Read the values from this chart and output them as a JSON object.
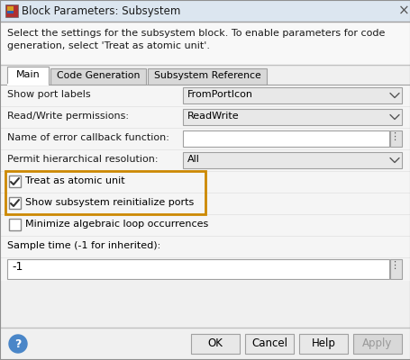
{
  "title": "Block Parameters: Subsystem",
  "desc_line1": "Select the settings for the subsystem block. To enable parameters for code",
  "desc_line2": "generation, select 'Treat as atomic unit'.",
  "tabs": [
    "Main",
    "Code Generation",
    "Subsystem Reference"
  ],
  "fields": [
    {
      "label": "Show port labels",
      "type": "dropdown",
      "value": "FromPortIcon"
    },
    {
      "label": "Read/Write permissions:",
      "type": "dropdown",
      "value": "ReadWrite"
    },
    {
      "label": "Name of error callback function:",
      "type": "text",
      "value": ""
    },
    {
      "label": "Permit hierarchical resolution:",
      "type": "dropdown",
      "value": "All"
    }
  ],
  "checkboxes": [
    {
      "label": "Treat as atomic unit",
      "checked": true,
      "highlighted": true
    },
    {
      "label": "Show subsystem reinitialize ports",
      "checked": true,
      "highlighted": true
    },
    {
      "label": "Minimize algebraic loop occurrences",
      "checked": false,
      "highlighted": false
    }
  ],
  "sample_time_label": "Sample time (-1 for inherited):",
  "sample_time_value": "-1",
  "buttons": [
    "OK",
    "Cancel",
    "Help",
    "Apply"
  ],
  "highlight_color": "#cc8800",
  "bg": "#f0f0f0",
  "titlebar_bg": "#dce6f0",
  "content_bg": "#f5f5f5",
  "dropdown_bg": "#e8e8e8",
  "input_bg": "#ffffff",
  "sep_color": "#c0c0c0",
  "border_color": "#a0a0a0",
  "tab_active_bg": "#ffffff",
  "tab_inactive_bg": "#d8d8d8",
  "button_bg": "#e8e8e8",
  "apply_bg": "#d8d8d8",
  "apply_color": "#999999",
  "text_color": "#1a1a1a",
  "icon_red": "#b03030",
  "icon_yellow": "#d4a020"
}
